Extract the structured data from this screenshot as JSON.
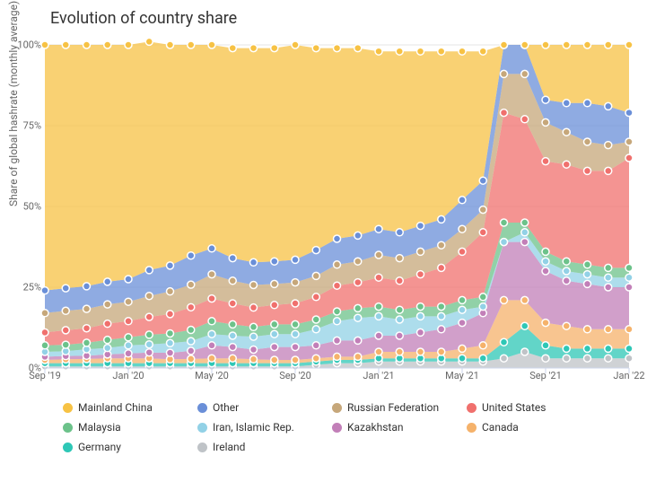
{
  "chart": {
    "title": "Evolution of country share",
    "ylabel": "Share of global hashrate (monthly average)",
    "type": "area",
    "stacked": true,
    "background_color": "#ffffff",
    "grid_color": "#e6e6e6",
    "ylim": [
      0,
      100
    ],
    "yticks": [
      0,
      25,
      50,
      75,
      100
    ],
    "ytick_labels": [
      "0%",
      "25%",
      "50%",
      "75%",
      "100%"
    ],
    "x_categories": [
      "Sep '19",
      "Oct '19",
      "Nov '19",
      "Dec '19",
      "Jan '20",
      "Feb '20",
      "Mar '20",
      "Apr '20",
      "May '20",
      "Jun '20",
      "Jul '20",
      "Aug '20",
      "Sep '20",
      "Oct '20",
      "Nov '20",
      "Dec '20",
      "Jan '21",
      "Feb '21",
      "Mar '21",
      "Apr '21",
      "May '21",
      "Jun '21",
      "Jul '21",
      "Aug '21",
      "Sep '21",
      "Oct '21",
      "Nov '21",
      "Dec '21",
      "Jan '22"
    ],
    "xtick_indices": [
      0,
      4,
      8,
      12,
      16,
      20,
      24,
      28
    ],
    "xtick_labels": [
      "Sep '19",
      "Jan '20",
      "May '20",
      "Sep '20",
      "Jan '21",
      "May '21",
      "Sep '21",
      "Jan '22"
    ],
    "marker_radius": 4,
    "series": [
      {
        "name": "Ireland",
        "color": "#bfc3c7",
        "values": [
          0.5,
          0.5,
          0.5,
          0.5,
          0.5,
          0.5,
          0.5,
          0.5,
          0.5,
          0.5,
          0.5,
          0.5,
          0.5,
          1,
          1.5,
          1.5,
          2,
          2,
          2,
          2,
          2,
          2,
          3,
          5,
          3,
          3,
          3,
          3,
          3
        ]
      },
      {
        "name": "Germany",
        "color": "#2ec7b6",
        "values": [
          1,
          1,
          1,
          1,
          1,
          1,
          1,
          1,
          1,
          1,
          1,
          1,
          1,
          1,
          1,
          1,
          1,
          1,
          1,
          1,
          1,
          1,
          5,
          8,
          4,
          3,
          3,
          3,
          3
        ]
      },
      {
        "name": "Canada",
        "color": "#f5b26b",
        "values": [
          1,
          1.2,
          1.3,
          1.5,
          1.5,
          1.5,
          1.2,
          1.3,
          1.5,
          1.5,
          1.2,
          1,
          1,
          1,
          1,
          1,
          2,
          2,
          2,
          2,
          3,
          4,
          13,
          8,
          7,
          7,
          6,
          6,
          6
        ]
      },
      {
        "name": "Kazakhstan",
        "color": "#c27fb8",
        "values": [
          1,
          1,
          1,
          1.2,
          1.5,
          1.8,
          2,
          2.5,
          4,
          3.5,
          3,
          4,
          4,
          4,
          5,
          5,
          5,
          5,
          6,
          7,
          8,
          10,
          18,
          18,
          16,
          14,
          14,
          13,
          13
        ]
      },
      {
        "name": "Iran, Islamic Rep.",
        "color": "#92d1e6",
        "values": [
          1.5,
          1.5,
          2,
          2,
          2.5,
          2.5,
          3,
          3,
          3.5,
          3.5,
          4,
          4,
          4,
          5,
          6,
          7,
          6,
          5,
          5,
          4,
          4,
          2,
          0,
          3,
          3,
          3,
          3,
          3,
          3
        ]
      },
      {
        "name": "Malaysia",
        "color": "#6cc28a",
        "values": [
          2,
          2,
          2,
          2.5,
          2.5,
          3,
          3,
          3.5,
          4,
          3.5,
          3,
          3,
          3,
          3,
          3,
          3,
          3,
          3,
          3,
          3,
          3,
          3,
          6,
          3,
          3,
          3,
          3,
          3,
          3
        ]
      },
      {
        "name": "United States",
        "color": "#f0706d",
        "values": [
          4,
          4.5,
          4.5,
          5,
          5,
          5.5,
          6,
          7,
          7,
          6.5,
          6,
          6,
          6.5,
          7,
          8,
          8,
          9,
          9,
          10,
          12,
          15,
          20,
          34,
          32,
          28,
          30,
          29,
          30,
          34
        ]
      },
      {
        "name": "Russian Federation",
        "color": "#c6a77a",
        "values": [
          6,
          6,
          6,
          6,
          6,
          6.5,
          7,
          7,
          7.5,
          7,
          7,
          6.5,
          6.5,
          6.5,
          6.5,
          6.5,
          7,
          7,
          7,
          7,
          7,
          7,
          12,
          14,
          12,
          10,
          9,
          8,
          5
        ]
      },
      {
        "name": "Other",
        "color": "#6a8fd8",
        "values": [
          7,
          7,
          7,
          7,
          7,
          8,
          8,
          9,
          8,
          7,
          7,
          7,
          7,
          8,
          8,
          8,
          8,
          8,
          8,
          8,
          9,
          9,
          9,
          9,
          7,
          9,
          12,
          12,
          9
        ]
      },
      {
        "name": "Mainland China",
        "color": "#f7c244",
        "values": [
          76,
          75.3,
          74.7,
          73.3,
          72.5,
          70.7,
          68.3,
          65.2,
          63,
          65,
          66.3,
          66,
          66.5,
          62.5,
          59,
          58,
          55,
          56,
          54,
          52,
          46,
          40,
          0,
          0,
          17,
          18,
          18,
          19,
          21
        ]
      }
    ],
    "legend_order": [
      "Mainland China",
      "Other",
      "Russian Federation",
      "United States",
      "Malaysia",
      "Iran, Islamic Rep.",
      "Kazakhstan",
      "Canada",
      "Germany",
      "Ireland"
    ]
  }
}
